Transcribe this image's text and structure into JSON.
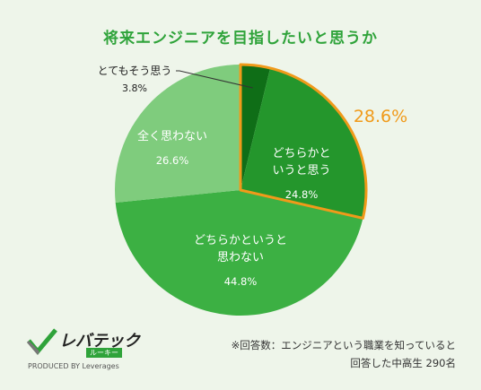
{
  "chart_data": {
    "type": "pie",
    "title": "将来エンジニアを目指したいと思うか",
    "slices": [
      {
        "label": "とてもそう思う",
        "value": 3.8,
        "value_label": "3.8%",
        "color": "#0f6e17"
      },
      {
        "label": "どちらかといいうと思う",
        "lines": [
          "どちらかと",
          "いうと思う"
        ],
        "value": 24.8,
        "value_label": "24.8%",
        "color": "#24962c"
      },
      {
        "label": "どちらかというと思わない",
        "lines": [
          "どちらかというと",
          "思わない"
        ],
        "value": 44.8,
        "value_label": "44.8%",
        "color": "#3cb043"
      },
      {
        "label": "全く思わない",
        "lines": [
          "全く思わない"
        ],
        "value": 26.6,
        "value_label": "26.6%",
        "color": "#7fcc7d"
      }
    ],
    "highlight": {
      "label": "28.6%",
      "color": "#f09a1a"
    }
  },
  "footnote": {
    "line1": "※回答数：エンジニアという職業を知っていると",
    "line2": "回答した中高生 290名"
  },
  "logo": {
    "brand": "レバテック",
    "sub": "ルーキー",
    "produced": "PRODUCED BY Leverages"
  }
}
